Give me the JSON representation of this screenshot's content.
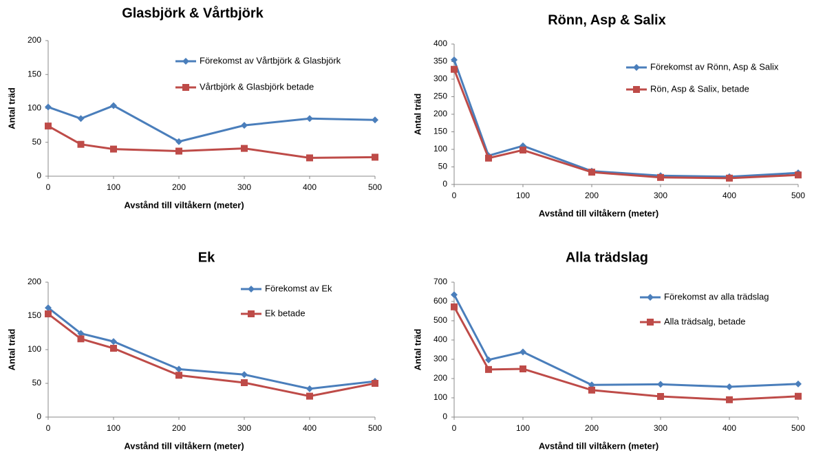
{
  "chart_data": [
    {
      "type": "line",
      "title": "Glasbjörk & Vårtbjörk",
      "x_label": "Avstånd till viltåkern  (meter)",
      "y_label": "Antal träd",
      "x": [
        0,
        50,
        100,
        200,
        300,
        400,
        500
      ],
      "xlim": [
        0,
        500
      ],
      "xticks": [
        0,
        100,
        200,
        300,
        400,
        500
      ],
      "ylim": [
        0,
        200
      ],
      "yticks": [
        0,
        50,
        100,
        150,
        200
      ],
      "series": [
        {
          "name": "Förekomst av Vårtbjörk & Glasbjörk",
          "color": "#4a7ebb",
          "marker": "diamond",
          "values": [
            102,
            85,
            104,
            51,
            75,
            85,
            83
          ]
        },
        {
          "name": "Vårtbjörk & Glasbjörk betade",
          "color": "#be4b48",
          "marker": "square",
          "values": [
            74,
            47,
            40,
            37,
            41,
            27,
            28
          ]
        }
      ]
    },
    {
      "type": "line",
      "title": "Rönn, Asp & Salix",
      "x_label": "Avstånd till viltåkern (meter)",
      "y_label": "Antal träd",
      "x": [
        0,
        50,
        100,
        200,
        300,
        400,
        500
      ],
      "xlim": [
        0,
        500
      ],
      "xticks": [
        0,
        100,
        200,
        300,
        400,
        500
      ],
      "ylim": [
        0,
        400
      ],
      "yticks": [
        0,
        50,
        100,
        150,
        200,
        250,
        300,
        350,
        400
      ],
      "series": [
        {
          "name": "Förekomst av Rönn, Asp & Salix",
          "color": "#4a7ebb",
          "marker": "diamond",
          "values": [
            355,
            82,
            110,
            38,
            25,
            22,
            33
          ]
        },
        {
          "name": "Rön, Asp & Salix, betade",
          "color": "#be4b48",
          "marker": "square",
          "values": [
            328,
            75,
            98,
            35,
            20,
            18,
            27
          ]
        }
      ]
    },
    {
      "type": "line",
      "title": "Ek",
      "x_label": "Avstånd till viltåkern (meter)",
      "y_label": "Antal träd",
      "x": [
        0,
        50,
        100,
        200,
        300,
        400,
        500
      ],
      "xlim": [
        0,
        500
      ],
      "xticks": [
        0,
        100,
        200,
        300,
        400,
        500
      ],
      "ylim": [
        0,
        200
      ],
      "yticks": [
        0,
        50,
        100,
        150,
        200
      ],
      "series": [
        {
          "name": "Förekomst av Ek",
          "color": "#4a7ebb",
          "marker": "diamond",
          "values": [
            162,
            124,
            112,
            71,
            63,
            42,
            53
          ]
        },
        {
          "name": "Ek betade",
          "color": "#be4b48",
          "marker": "square",
          "values": [
            153,
            116,
            102,
            62,
            51,
            31,
            50
          ]
        }
      ]
    },
    {
      "type": "line",
      "title": "Alla trädslag",
      "x_label": "Avstånd till viltåkern (meter)",
      "y_label": "Antal träd",
      "x": [
        0,
        50,
        100,
        200,
        300,
        400,
        500
      ],
      "xlim": [
        0,
        500
      ],
      "xticks": [
        0,
        100,
        200,
        300,
        400,
        500
      ],
      "ylim": [
        0,
        700
      ],
      "yticks": [
        0,
        100,
        200,
        300,
        400,
        500,
        600,
        700
      ],
      "series": [
        {
          "name": "Förekomst av alla trädslag",
          "color": "#4a7ebb",
          "marker": "diamond",
          "values": [
            635,
            297,
            338,
            167,
            170,
            157,
            172
          ]
        },
        {
          "name": "Alla trädsalg, betade",
          "color": "#be4b48",
          "marker": "square",
          "values": [
            572,
            247,
            250,
            140,
            107,
            90,
            108
          ]
        }
      ]
    }
  ]
}
